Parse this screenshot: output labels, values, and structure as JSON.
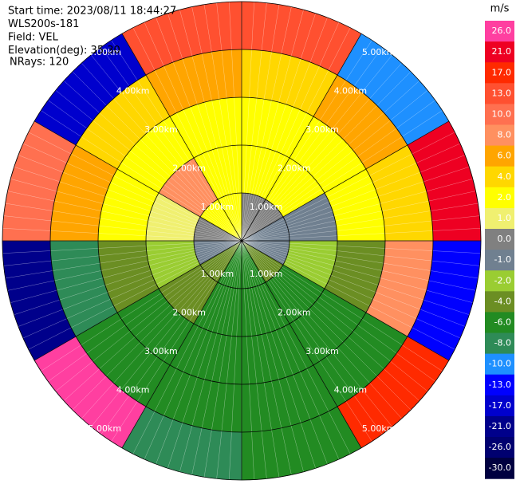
{
  "chart_data": {
    "type": "radar-ppi",
    "info": [
      "Start time: 2023/08/11 18:44:27",
      "WLS200s-181",
      "Field: VEL",
      "Elevation(deg): 35.30",
      "NRays: 120"
    ],
    "range_rings": [
      {
        "value": 1,
        "label": "1.00km"
      },
      {
        "value": 2,
        "label": "2.00km"
      },
      {
        "value": 3,
        "label": "3.00km"
      },
      {
        "value": 4,
        "label": "4.00km"
      },
      {
        "value": 5,
        "label": "5.00km"
      }
    ],
    "field": [
      [
        0,
        2,
        2,
        4,
        13
      ],
      [
        0,
        2,
        2,
        6,
        -10
      ],
      [
        -1,
        -1,
        2,
        4,
        21
      ],
      [
        -1,
        -2,
        -4,
        8,
        -13
      ],
      [
        -4,
        -6,
        -6,
        -6,
        17
      ],
      [
        -6,
        -6,
        -6,
        -6,
        -6
      ],
      [
        -6,
        -6,
        -6,
        -6,
        -8
      ],
      [
        -4,
        -4,
        -6,
        -6,
        26
      ],
      [
        -1,
        -2,
        -4,
        -8,
        -21
      ],
      [
        0,
        1,
        2,
        6,
        10
      ],
      [
        2,
        8,
        2,
        4,
        -17
      ],
      [
        2,
        2,
        2,
        6,
        13
      ]
    ],
    "colorbar": {
      "unit": "m/s",
      "ticks": [
        {
          "value": 26,
          "label": "26.0",
          "color": "#ff3fa0"
        },
        {
          "value": 21,
          "label": "21.0",
          "color": "#ee0022"
        },
        {
          "value": 17,
          "label": "17.0",
          "color": "#ff2a00"
        },
        {
          "value": 13,
          "label": "13.0",
          "color": "#ff5030"
        },
        {
          "value": 10,
          "label": "10.0",
          "color": "#ff7050"
        },
        {
          "value": 8,
          "label": "8.0",
          "color": "#ff9060"
        },
        {
          "value": 6,
          "label": "6.0",
          "color": "#ffa500"
        },
        {
          "value": 4,
          "label": "4.0",
          "color": "#ffd700"
        },
        {
          "value": 2,
          "label": "2.0",
          "color": "#ffff00"
        },
        {
          "value": 1,
          "label": "1.0",
          "color": "#f0f070"
        },
        {
          "value": 0,
          "label": "0.0",
          "color": "#808080"
        },
        {
          "value": -1,
          "label": "-1.0",
          "color": "#708090"
        },
        {
          "value": -2,
          "label": "-2.0",
          "color": "#9acd32"
        },
        {
          "value": -4,
          "label": "-4.0",
          "color": "#6b8e23"
        },
        {
          "value": -6,
          "label": "-6.0",
          "color": "#228b22"
        },
        {
          "value": -8,
          "label": "-8.0",
          "color": "#2e8b57"
        },
        {
          "value": -10,
          "label": "-10.0",
          "color": "#1e90ff"
        },
        {
          "value": -13,
          "label": "-13.0",
          "color": "#0000ff"
        },
        {
          "value": -17,
          "label": "-17.0",
          "color": "#0000cd"
        },
        {
          "value": -21,
          "label": "-21.0",
          "color": "#00008b"
        },
        {
          "value": -26,
          "label": "-26.0",
          "color": "#000070"
        },
        {
          "value": -30,
          "label": "-30.0",
          "color": "#000040"
        }
      ]
    }
  }
}
